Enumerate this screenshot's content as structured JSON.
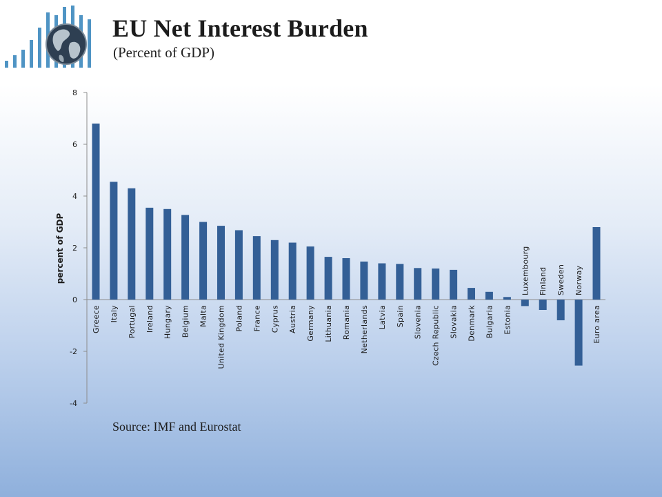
{
  "header": {
    "title": "EU Net Interest Burden",
    "subtitle": "(Percent of GDP)"
  },
  "footer": {
    "source": "Source: IMF and Eurostat"
  },
  "colors": {
    "bar": "#335f96",
    "axis": "#8c8c8c",
    "logo_bars": "#4f94c4",
    "text": "#1c1c1c"
  },
  "chart_data": {
    "type": "bar",
    "title": "",
    "xlabel": "",
    "ylabel": "percent of GDP",
    "ylim": [
      -4,
      8
    ],
    "yticks": [
      8,
      6,
      4,
      2,
      0,
      -2,
      -4
    ],
    "grid": false,
    "legend": "none",
    "categories": [
      "Greece",
      "Italy",
      "Portugal",
      "Ireland",
      "Hungary",
      "Belgium",
      "Malta",
      "United Kingdom",
      "Poland",
      "France",
      "Cyprus",
      "Austria",
      "Germany",
      "Lithuania",
      "Romania",
      "Netherlands",
      "Latvia",
      "Spain",
      "Slovenia",
      "Czech Republic",
      "Slovakia",
      "Denmark",
      "Bulgaria",
      "Estonia",
      "Luxembourg",
      "Finland",
      "Sweden",
      "Norway",
      "Euro area"
    ],
    "values": [
      6.8,
      4.55,
      4.3,
      3.55,
      3.5,
      3.27,
      3.0,
      2.85,
      2.68,
      2.45,
      2.3,
      2.2,
      2.05,
      1.65,
      1.6,
      1.47,
      1.4,
      1.38,
      1.22,
      1.2,
      1.15,
      0.45,
      0.3,
      0.1,
      -0.25,
      -0.4,
      -0.8,
      -2.55,
      2.8
    ]
  }
}
